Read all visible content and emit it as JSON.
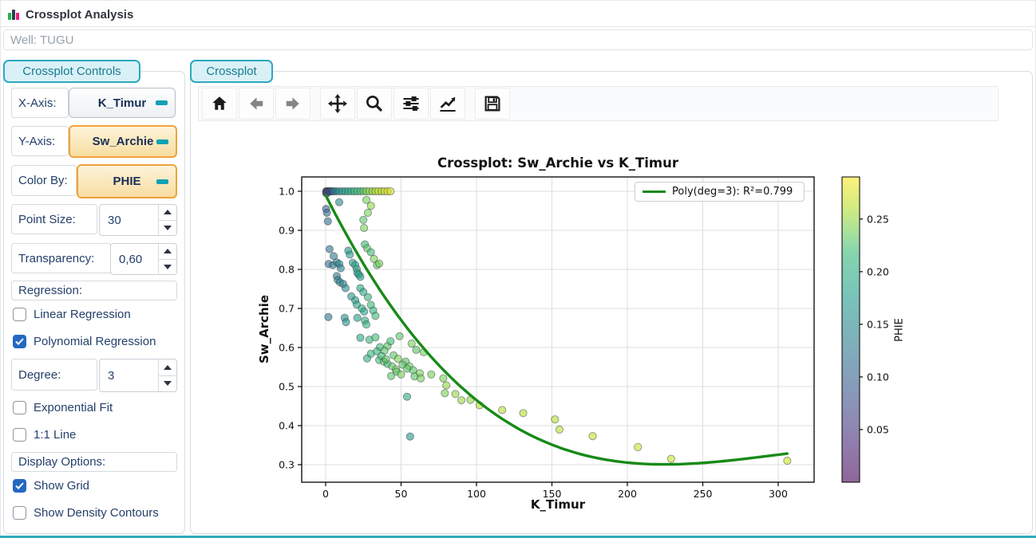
{
  "header": {
    "title": "Crossplot Analysis",
    "well": "Well: TUGU"
  },
  "controls": {
    "tab": "Crossplot Controls",
    "x_axis": {
      "label": "X-Axis:",
      "value": "K_Timur"
    },
    "y_axis": {
      "label": "Y-Axis:",
      "value": "Sw_Archie"
    },
    "color_by": {
      "label": "Color By:",
      "value": "PHIE"
    },
    "point_size": {
      "label": "Point Size:",
      "value": "30"
    },
    "transparency": {
      "label": "Transparency:",
      "value": "0,60"
    },
    "regression_section": "Regression:",
    "linear": {
      "label": "Linear Regression",
      "checked": false
    },
    "polynomial": {
      "label": "Polynomial Regression",
      "checked": true
    },
    "degree": {
      "label": "Degree:",
      "value": "3"
    },
    "exponential": {
      "label": "Exponential Fit",
      "checked": false
    },
    "one_to_one": {
      "label": "1:1 Line",
      "checked": false
    },
    "display_section": "Display Options:",
    "show_grid": {
      "label": "Show Grid",
      "checked": true
    },
    "density": {
      "label": "Show Density Contours",
      "checked": false
    }
  },
  "plot": {
    "tab": "Crossplot",
    "toolbar_icons": [
      "home-icon",
      "back-arrow-icon",
      "forward-arrow-icon",
      "pan-icon",
      "zoom-icon",
      "subplots-icon",
      "customize-plot-icon",
      "save-icon"
    ]
  },
  "chart_data": {
    "type": "scatter",
    "title": "Crossplot: Sw_Archie vs K_Timur",
    "xlabel": "K_Timur",
    "ylabel": "Sw_Archie",
    "xlim": [
      -16,
      324
    ],
    "ylim": [
      0.26,
      1.037
    ],
    "x_ticks": [
      0,
      50,
      100,
      150,
      200,
      250,
      300
    ],
    "y_ticks": [
      0.3,
      0.4,
      0.5,
      0.6,
      0.7,
      0.8,
      0.9,
      1.0
    ],
    "grid": true,
    "legend": {
      "label": "Poly(deg=3): R²=0.799",
      "position": "upper right",
      "line_color": "#178a17"
    },
    "colorbar": {
      "label": "PHIE",
      "ticks": [
        0.05,
        0.1,
        0.15,
        0.2,
        0.25
      ],
      "vmin": 0.0,
      "vmax": 0.29,
      "colormap": "viridis"
    },
    "point_alpha": 0.6,
    "point_size": 30,
    "regression": {
      "type": "polynomial",
      "degree": 3,
      "r2": 0.799,
      "coefficients": [
        0.99,
        -0.00769,
        2.75e-05,
        -3.0833e-08
      ],
      "x_range": [
        0,
        306
      ]
    },
    "points": [
      [
        0.3,
        1.0,
        0.06
      ],
      [
        0.8,
        1.0,
        0.05
      ],
      [
        1.2,
        1.0,
        0.08
      ],
      [
        1.7,
        1.0,
        0.07
      ],
      [
        2.2,
        1.0,
        0.1
      ],
      [
        2.8,
        1.0,
        0.09
      ],
      [
        3.5,
        1.0,
        0.11
      ],
      [
        4.5,
        1.0,
        0.12
      ],
      [
        5.5,
        1.0,
        0.13
      ],
      [
        7,
        1.0,
        0.14
      ],
      [
        9,
        1.0,
        0.16
      ],
      [
        11,
        1.0,
        0.17
      ],
      [
        13,
        1.0,
        0.18
      ],
      [
        15,
        1.0,
        0.19
      ],
      [
        17,
        1.0,
        0.2
      ],
      [
        19,
        1.0,
        0.21
      ],
      [
        21,
        1.0,
        0.22
      ],
      [
        23,
        1.0,
        0.22
      ],
      [
        25,
        1.0,
        0.23
      ],
      [
        27,
        1.0,
        0.24
      ],
      [
        29,
        1.0,
        0.25
      ],
      [
        31,
        1.0,
        0.25
      ],
      [
        33,
        1.0,
        0.26
      ],
      [
        35,
        1.0,
        0.27
      ],
      [
        37,
        1.0,
        0.26
      ],
      [
        39,
        1.0,
        0.27
      ],
      [
        41,
        1.0,
        0.28
      ],
      [
        43,
        1.0,
        0.27
      ],
      [
        0.4,
        0.995,
        0.05
      ],
      [
        0.9,
        0.995,
        0.07
      ],
      [
        0.3,
        0.955,
        0.1
      ],
      [
        0.8,
        0.945,
        0.11
      ],
      [
        1.5,
        0.923,
        0.12
      ],
      [
        27,
        0.978,
        0.24
      ],
      [
        30,
        0.963,
        0.25
      ],
      [
        28,
        0.945,
        0.24
      ],
      [
        25,
        0.927,
        0.23
      ],
      [
        25.5,
        0.906,
        0.24
      ],
      [
        9,
        0.972,
        0.15
      ],
      [
        2.6,
        0.852,
        0.12
      ],
      [
        5.3,
        0.834,
        0.13
      ],
      [
        2,
        0.814,
        0.12
      ],
      [
        4.8,
        0.811,
        0.14
      ],
      [
        7.4,
        0.818,
        0.13
      ],
      [
        9,
        0.814,
        0.15
      ],
      [
        10,
        0.803,
        0.14
      ],
      [
        7.4,
        0.783,
        0.13
      ],
      [
        8,
        0.773,
        0.14
      ],
      [
        9.5,
        0.767,
        0.15
      ],
      [
        11.6,
        0.763,
        0.14
      ],
      [
        13.2,
        0.752,
        0.15
      ],
      [
        15,
        0.848,
        0.17
      ],
      [
        16,
        0.838,
        0.18
      ],
      [
        18,
        0.817,
        0.17
      ],
      [
        19.6,
        0.811,
        0.18
      ],
      [
        20.6,
        0.801,
        0.19
      ],
      [
        21,
        0.791,
        0.18
      ],
      [
        22,
        0.787,
        0.19
      ],
      [
        23,
        0.781,
        0.18
      ],
      [
        26,
        0.864,
        0.22
      ],
      [
        27.5,
        0.854,
        0.23
      ],
      [
        30,
        0.844,
        0.22
      ],
      [
        32,
        0.827,
        0.24
      ],
      [
        34,
        0.811,
        0.23
      ],
      [
        35.5,
        0.815,
        0.24
      ],
      [
        23,
        0.752,
        0.19
      ],
      [
        25,
        0.742,
        0.2
      ],
      [
        19.6,
        0.721,
        0.18
      ],
      [
        20.6,
        0.71,
        0.19
      ],
      [
        24,
        0.7,
        0.2
      ],
      [
        25.5,
        0.692,
        0.19
      ],
      [
        12.6,
        0.676,
        0.16
      ],
      [
        13.5,
        0.665,
        0.17
      ],
      [
        26,
        0.669,
        0.2
      ],
      [
        27,
        0.659,
        0.21
      ],
      [
        21,
        0.676,
        0.18
      ],
      [
        1.8,
        0.678,
        0.13
      ],
      [
        17,
        0.731,
        0.17
      ],
      [
        28,
        0.729,
        0.21
      ],
      [
        30,
        0.709,
        0.22
      ],
      [
        31.5,
        0.695,
        0.21
      ],
      [
        33,
        0.681,
        0.22
      ],
      [
        23,
        0.625,
        0.19
      ],
      [
        29,
        0.62,
        0.21
      ],
      [
        33,
        0.626,
        0.22
      ],
      [
        41,
        0.604,
        0.23
      ],
      [
        43,
        0.616,
        0.22
      ],
      [
        49,
        0.629,
        0.23
      ],
      [
        57,
        0.61,
        0.24
      ],
      [
        60,
        0.594,
        0.23
      ],
      [
        65,
        0.588,
        0.24
      ],
      [
        27.5,
        0.572,
        0.2
      ],
      [
        30,
        0.584,
        0.21
      ],
      [
        35.5,
        0.568,
        0.22
      ],
      [
        38.6,
        0.564,
        0.23
      ],
      [
        41,
        0.558,
        0.22
      ],
      [
        44,
        0.552,
        0.23
      ],
      [
        46.6,
        0.544,
        0.24
      ],
      [
        53,
        0.564,
        0.23
      ],
      [
        55.5,
        0.552,
        0.24
      ],
      [
        58,
        0.542,
        0.23
      ],
      [
        62.4,
        0.534,
        0.24
      ],
      [
        43.4,
        0.527,
        0.23
      ],
      [
        36,
        0.601,
        0.22
      ],
      [
        39,
        0.592,
        0.23
      ],
      [
        45,
        0.58,
        0.23
      ],
      [
        48,
        0.571,
        0.24
      ],
      [
        51,
        0.556,
        0.23
      ],
      [
        34,
        0.59,
        0.21
      ],
      [
        37,
        0.578,
        0.22
      ],
      [
        40,
        0.57,
        0.23
      ],
      [
        47,
        0.538,
        0.23
      ],
      [
        50,
        0.531,
        0.24
      ],
      [
        54,
        0.546,
        0.23
      ],
      [
        59,
        0.526,
        0.23
      ],
      [
        63,
        0.521,
        0.24
      ],
      [
        70,
        0.531,
        0.24
      ],
      [
        78,
        0.521,
        0.24
      ],
      [
        80,
        0.503,
        0.25
      ],
      [
        79,
        0.483,
        0.24
      ],
      [
        86,
        0.481,
        0.25
      ],
      [
        90,
        0.465,
        0.25
      ],
      [
        96,
        0.466,
        0.25
      ],
      [
        102,
        0.452,
        0.26
      ],
      [
        117,
        0.44,
        0.26
      ],
      [
        131,
        0.432,
        0.26
      ],
      [
        152,
        0.416,
        0.26
      ],
      [
        155,
        0.39,
        0.26
      ],
      [
        177,
        0.373,
        0.27
      ],
      [
        207,
        0.345,
        0.27
      ],
      [
        229,
        0.315,
        0.27
      ],
      [
        306,
        0.31,
        0.27
      ],
      [
        56,
        0.372,
        0.17
      ],
      [
        54,
        0.474,
        0.2
      ]
    ]
  }
}
